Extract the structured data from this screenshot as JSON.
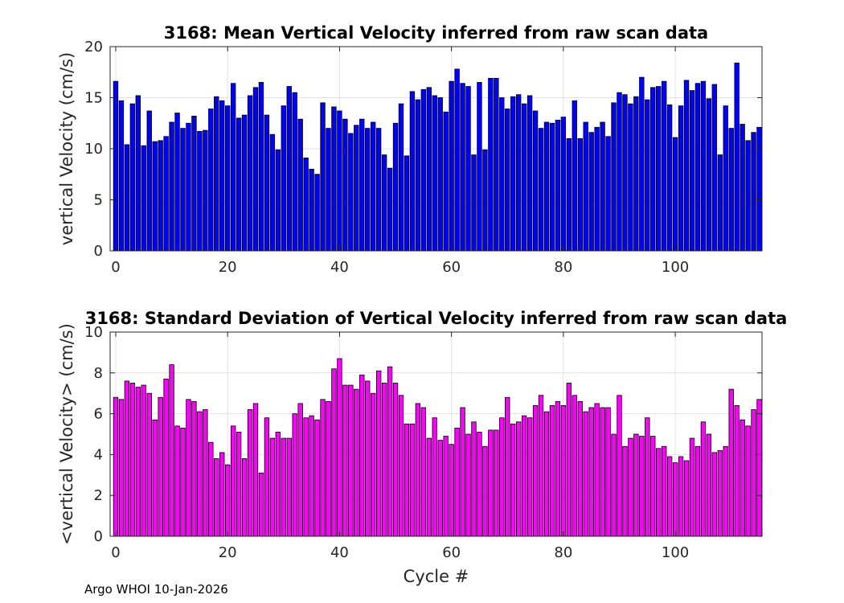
{
  "chart_data": [
    {
      "type": "bar",
      "title": "3168: Mean Vertical Velocity inferred from raw scan data",
      "xlabel": "",
      "ylabel": "vertical Velocity (cm/s)",
      "xlim": [
        -1,
        115.5
      ],
      "ylim": [
        0,
        20
      ],
      "xticks": [
        0,
        20,
        40,
        60,
        80,
        100
      ],
      "yticks": [
        0,
        5,
        10,
        15,
        20
      ],
      "grid": true,
      "color": "#0000ff",
      "x_start": 0,
      "values": [
        16.6,
        14.7,
        10.4,
        14.4,
        15.2,
        10.3,
        13.7,
        10.7,
        10.8,
        11.2,
        12.6,
        13.5,
        12.0,
        12.5,
        13.2,
        11.7,
        11.8,
        13.9,
        15.1,
        14.7,
        14.2,
        16.4,
        13.0,
        13.3,
        15.2,
        16.0,
        16.5,
        13.3,
        11.4,
        9.9,
        14.2,
        16.1,
        15.5,
        12.9,
        9.1,
        8.0,
        7.5,
        14.5,
        12.0,
        14.1,
        13.7,
        12.9,
        11.5,
        12.3,
        12.9,
        12.0,
        12.6,
        12.0,
        9.4,
        8.1,
        12.5,
        14.4,
        9.3,
        15.6,
        14.8,
        15.8,
        16.0,
        15.2,
        15.0,
        13.6,
        16.6,
        17.8,
        16.4,
        16.1,
        9.4,
        16.5,
        9.9,
        16.9,
        16.9,
        15.0,
        13.9,
        15.1,
        15.3,
        14.4,
        15.2,
        13.7,
        12.0,
        12.6,
        12.5,
        12.8,
        13.1,
        11.0,
        14.7,
        11.0,
        12.6,
        11.6,
        12.1,
        12.6,
        11.2,
        14.5,
        15.5,
        15.3,
        14.4,
        15.1,
        17.0,
        14.8,
        16.0,
        16.1,
        16.6,
        14.3,
        11.1,
        14.2,
        16.7,
        15.7,
        16.4,
        16.6,
        14.9,
        16.3,
        9.4,
        14.2,
        12.0,
        18.4,
        12.4,
        10.8,
        11.6,
        12.1
      ]
    },
    {
      "type": "bar",
      "title": "3168: Standard Deviation of Vertical Velocity inferred from raw scan data",
      "xlabel": "Cycle #",
      "ylabel": "<vertical Velocity> (cm/s)",
      "xlim": [
        -1,
        115.5
      ],
      "ylim": [
        0,
        10
      ],
      "xticks": [
        0,
        20,
        40,
        60,
        80,
        100
      ],
      "yticks": [
        0,
        2,
        4,
        6,
        8,
        10
      ],
      "grid": true,
      "color": "#ff00ff",
      "x_start": 0,
      "values": [
        6.8,
        6.7,
        7.6,
        7.5,
        7.3,
        7.4,
        7.0,
        5.7,
        6.8,
        7.7,
        8.4,
        5.4,
        5.3,
        6.7,
        6.6,
        6.1,
        6.2,
        4.6,
        3.8,
        4.1,
        3.5,
        5.4,
        5.1,
        3.8,
        6.2,
        6.5,
        3.1,
        5.8,
        4.8,
        5.1,
        4.8,
        4.8,
        6.0,
        6.5,
        5.8,
        5.9,
        5.7,
        6.7,
        6.6,
        8.2,
        8.7,
        7.4,
        7.4,
        7.2,
        7.9,
        7.6,
        7.0,
        8.1,
        7.5,
        8.3,
        7.5,
        6.9,
        5.5,
        5.5,
        6.5,
        6.3,
        4.8,
        5.8,
        4.7,
        4.9,
        4.5,
        5.3,
        6.3,
        5.0,
        5.6,
        5.1,
        4.4,
        5.2,
        5.2,
        5.8,
        6.8,
        5.5,
        5.6,
        5.9,
        5.8,
        6.4,
        6.9,
        6.1,
        6.4,
        6.6,
        6.4,
        7.5,
        6.9,
        6.6,
        6.1,
        6.3,
        6.5,
        6.3,
        6.3,
        5.0,
        6.9,
        4.4,
        4.8,
        5.0,
        4.9,
        5.8,
        4.9,
        4.3,
        4.4,
        3.9,
        3.6,
        3.9,
        3.7,
        4.8,
        4.4,
        5.6,
        5.0,
        4.1,
        4.2,
        4.4,
        7.2,
        6.4,
        5.7,
        5.4,
        6.2,
        6.7
      ]
    }
  ],
  "footer": "Argo WHOI 10-Jan-2026"
}
